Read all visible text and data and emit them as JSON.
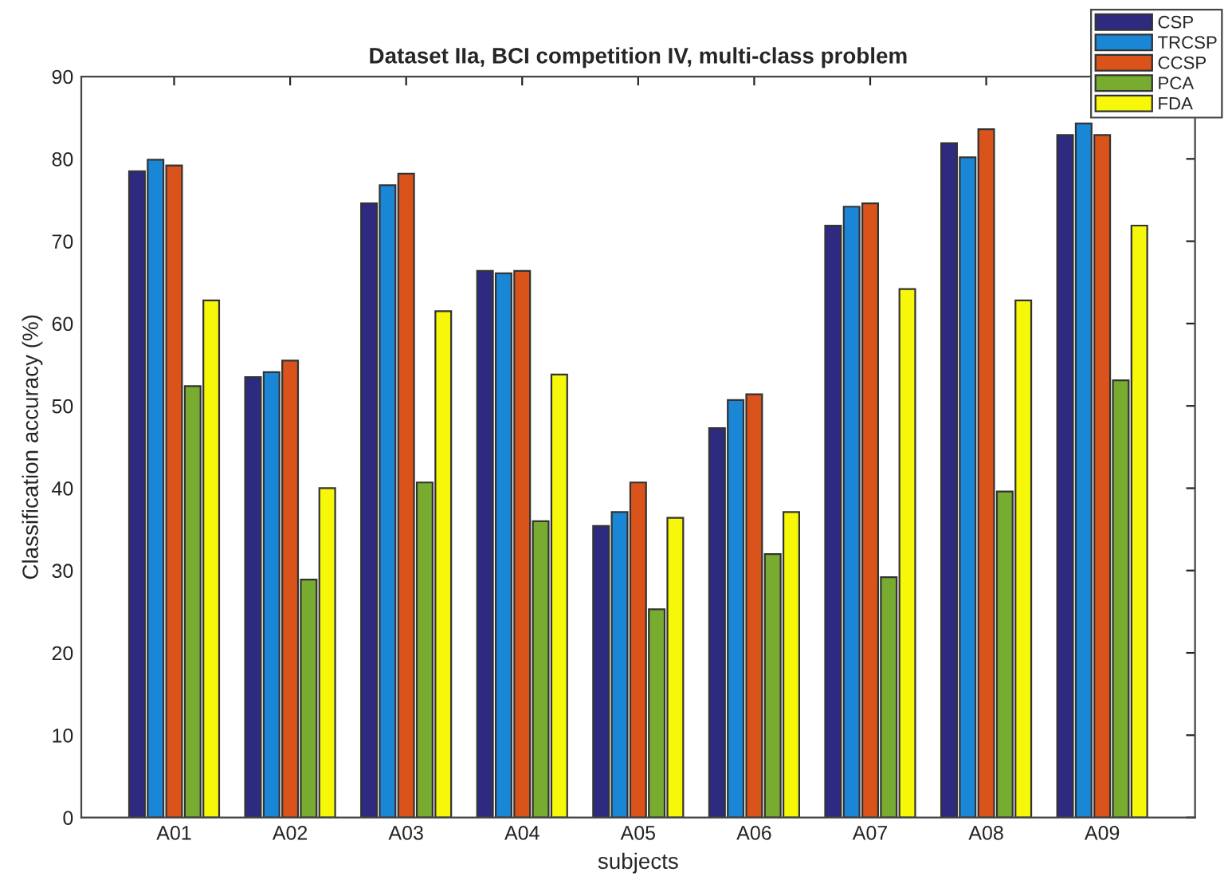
{
  "chart_data": {
    "type": "bar",
    "title": "Dataset IIa, BCI competition IV, multi-class problem",
    "xlabel": "subjects",
    "ylabel": "Classification accuracy (%)",
    "categories": [
      "A01",
      "A02",
      "A03",
      "A04",
      "A05",
      "A06",
      "A07",
      "A08",
      "A09"
    ],
    "series": [
      {
        "name": "CSP",
        "color": "#2e2a80",
        "values": [
          78.5,
          53.5,
          74.6,
          66.4,
          35.4,
          47.3,
          71.9,
          81.9,
          82.9
        ]
      },
      {
        "name": "TRCSP",
        "color": "#1a86d6",
        "values": [
          79.9,
          54.1,
          76.8,
          66.1,
          37.1,
          50.7,
          74.2,
          80.2,
          84.3
        ]
      },
      {
        "name": "CCSP",
        "color": "#d9531a",
        "values": [
          79.2,
          55.5,
          78.2,
          66.4,
          40.7,
          51.4,
          74.6,
          83.6,
          82.9
        ]
      },
      {
        "name": "PCA",
        "color": "#77ac30",
        "values": [
          52.4,
          28.9,
          40.7,
          36.0,
          25.3,
          32.0,
          29.2,
          39.6,
          53.1
        ]
      },
      {
        "name": "FDA",
        "color": "#f7f70a",
        "values": [
          62.8,
          40.0,
          61.5,
          53.8,
          36.4,
          37.1,
          64.2,
          62.8,
          71.9
        ]
      }
    ],
    "ylim": [
      0,
      90
    ],
    "yticks": [
      0,
      10,
      20,
      30,
      40,
      50,
      60,
      70,
      80,
      90
    ],
    "grid": false,
    "legend": "top right"
  }
}
